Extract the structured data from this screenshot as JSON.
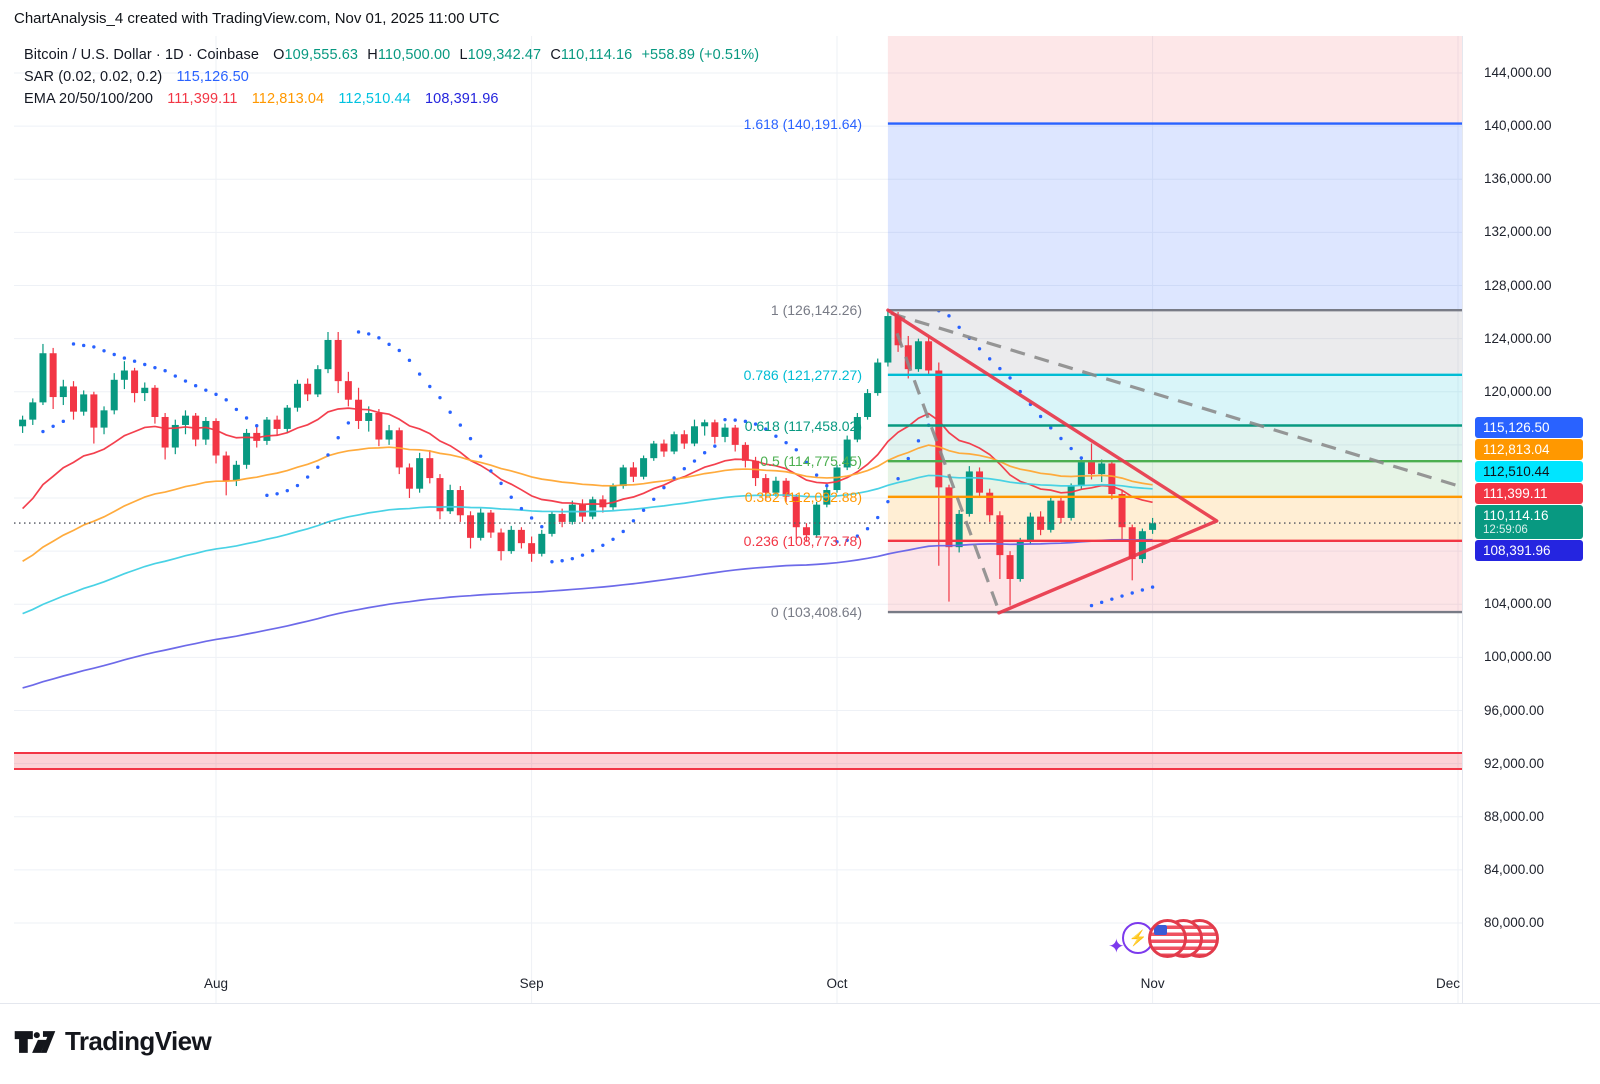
{
  "header": {
    "title": "ChartAnalysis_4 created with TradingView.com, Nov 01, 2025 11:00 UTC"
  },
  "legend": {
    "symbol_row": {
      "symbol": "Bitcoin / U.S. Dollar · 1D · Coinbase",
      "o_label": "O",
      "o": "109,555.63",
      "h_label": "H",
      "h": "110,500.00",
      "l_label": "L",
      "l": "109,342.47",
      "c_label": "C",
      "c": "110,114.16",
      "change": "+558.89 (+0.51%)",
      "value_color": "#089981"
    },
    "sar_row": {
      "label": "SAR (0.02, 0.02, 0.2)",
      "value": "115,126.50",
      "value_color": "#2962ff"
    },
    "ema_row": {
      "label": "EMA 20/50/100/200",
      "ema20": "111,399.11",
      "ema20_color": "#f23645",
      "ema50": "112,813.04",
      "ema50_color": "#ff9800",
      "ema100": "112,510.44",
      "ema100_color": "#00c2e0",
      "ema200": "108,391.96",
      "ema200_color": "#2424dd"
    }
  },
  "price_scale": [
    {
      "text": "144,000.00",
      "price": 144000
    },
    {
      "text": "140,000.00",
      "price": 140000
    },
    {
      "text": "136,000.00",
      "price": 136000
    },
    {
      "text": "132,000.00",
      "price": 132000
    },
    {
      "text": "128,000.00",
      "price": 128000
    },
    {
      "text": "124,000.00",
      "price": 124000
    },
    {
      "text": "120,000.00",
      "price": 120000
    },
    {
      "text": "116,000.00",
      "price": 116000
    },
    {
      "text": "112,000.00",
      "price": 112000
    },
    {
      "text": "108,000.00",
      "price": 108000
    },
    {
      "text": "104,000.00",
      "price": 104000
    },
    {
      "text": "100,000.00",
      "price": 100000
    },
    {
      "text": "96,000.00",
      "price": 96000
    },
    {
      "text": "92,000.00",
      "price": 92000
    },
    {
      "text": "88,000.00",
      "price": 88000
    },
    {
      "text": "84,000.00",
      "price": 84000
    },
    {
      "text": "80,000.00",
      "price": 80000
    }
  ],
  "price_badges": [
    {
      "name": "sar-value",
      "text": "115,126.50",
      "bg": "#2962ff",
      "fg": "#ffffff"
    },
    {
      "name": "ema50-value",
      "text": "112,813.04",
      "bg": "#ff9800",
      "fg": "#ffffff"
    },
    {
      "name": "ema100-value",
      "text": "112,510.44",
      "bg": "#00e5ff",
      "fg": "#10131a"
    },
    {
      "name": "ema20-value",
      "text": "111,399.11",
      "bg": "#f23645",
      "fg": "#ffffff"
    },
    {
      "name": "last-price",
      "text": "110,114.16",
      "sub": "12:59:06",
      "bg": "#089981",
      "fg": "#ffffff"
    },
    {
      "name": "ema200-value",
      "text": "108,391.96",
      "bg": "#2525e0",
      "fg": "#ffffff"
    }
  ],
  "time_scale": [
    {
      "label": "Aug",
      "index": 19
    },
    {
      "label": "Sep",
      "index": 50
    },
    {
      "label": "Oct",
      "index": 80
    },
    {
      "label": "Nov",
      "index": 111
    },
    {
      "label": "Dec",
      "index": 141
    }
  ],
  "footer": {
    "brand": "TradingView"
  },
  "chart_data": {
    "type": "candlestick",
    "symbol": "Bitcoin / U.S. Dollar",
    "interval": "1D",
    "exchange": "Coinbase",
    "last": {
      "open": 109555.63,
      "high": 110500.0,
      "low": 109342.47,
      "close": 110114.16,
      "change": 558.89,
      "change_pct": 0.51,
      "countdown": "12:59:06"
    },
    "ylim": [
      77900,
      146800
    ],
    "xlabels": [
      "Aug",
      "Sep",
      "Oct",
      "Nov",
      "Dec"
    ],
    "grid": true,
    "units": "USD thousands",
    "candles": [
      [
        117.4,
        118.2,
        116.9,
        117.9
      ],
      [
        117.9,
        119.5,
        117.5,
        119.2
      ],
      [
        119.2,
        123.6,
        119.0,
        122.9
      ],
      [
        122.9,
        123.3,
        118.7,
        119.6
      ],
      [
        119.6,
        120.9,
        119.0,
        120.4
      ],
      [
        120.4,
        120.8,
        117.9,
        118.5
      ],
      [
        118.5,
        120.1,
        118.2,
        119.8
      ],
      [
        119.8,
        120.0,
        116.1,
        117.3
      ],
      [
        117.3,
        118.9,
        116.8,
        118.6
      ],
      [
        118.6,
        121.4,
        118.3,
        120.9
      ],
      [
        120.9,
        122.3,
        120.2,
        121.6
      ],
      [
        121.6,
        121.8,
        119.2,
        119.9
      ],
      [
        119.9,
        120.7,
        119.3,
        120.3
      ],
      [
        120.3,
        120.5,
        117.6,
        118.1
      ],
      [
        118.1,
        118.4,
        114.9,
        115.8
      ],
      [
        115.8,
        117.9,
        115.3,
        117.5
      ],
      [
        117.5,
        118.6,
        116.8,
        118.2
      ],
      [
        118.2,
        118.4,
        115.9,
        116.4
      ],
      [
        116.4,
        118.1,
        116.0,
        117.8
      ],
      [
        117.8,
        118.0,
        114.6,
        115.2
      ],
      [
        115.2,
        115.5,
        112.2,
        113.3
      ],
      [
        113.3,
        114.8,
        112.9,
        114.5
      ],
      [
        114.5,
        117.2,
        114.2,
        116.9
      ],
      [
        116.9,
        117.4,
        115.8,
        116.3
      ],
      [
        116.3,
        118.1,
        116.0,
        117.9
      ],
      [
        117.9,
        118.2,
        116.7,
        117.2
      ],
      [
        117.2,
        119.0,
        116.9,
        118.8
      ],
      [
        118.8,
        120.9,
        118.5,
        120.6
      ],
      [
        120.6,
        121.0,
        119.3,
        119.8
      ],
      [
        119.8,
        122.0,
        119.6,
        121.7
      ],
      [
        121.7,
        124.5,
        121.4,
        123.9
      ],
      [
        123.9,
        124.5,
        119.9,
        120.8
      ],
      [
        120.8,
        121.5,
        118.9,
        119.4
      ],
      [
        119.4,
        120.3,
        117.2,
        117.8
      ],
      [
        117.8,
        118.9,
        117.0,
        118.4
      ],
      [
        118.4,
        118.7,
        115.9,
        116.4
      ],
      [
        116.4,
        117.5,
        116.0,
        117.1
      ],
      [
        117.1,
        117.3,
        113.8,
        114.3
      ],
      [
        114.3,
        114.6,
        112.0,
        112.7
      ],
      [
        112.7,
        115.4,
        112.4,
        115.0
      ],
      [
        115.0,
        115.6,
        113.1,
        113.5
      ],
      [
        113.5,
        113.8,
        110.4,
        111.0
      ],
      [
        111.0,
        113.0,
        110.8,
        112.6
      ],
      [
        112.6,
        112.9,
        110.2,
        110.7
      ],
      [
        110.7,
        111.0,
        108.2,
        109.0
      ],
      [
        109.0,
        111.2,
        108.8,
        110.9
      ],
      [
        110.9,
        111.1,
        109.0,
        109.4
      ],
      [
        109.4,
        109.7,
        107.3,
        108.0
      ],
      [
        108.0,
        109.9,
        107.8,
        109.6
      ],
      [
        109.6,
        109.8,
        108.2,
        108.6
      ],
      [
        108.6,
        109.1,
        107.2,
        107.8
      ],
      [
        107.8,
        109.6,
        107.6,
        109.3
      ],
      [
        109.3,
        111.0,
        109.1,
        110.8
      ],
      [
        110.8,
        111.2,
        109.8,
        110.2
      ],
      [
        110.2,
        111.8,
        110.0,
        111.5
      ],
      [
        111.5,
        111.9,
        110.2,
        110.6
      ],
      [
        110.6,
        112.1,
        110.4,
        111.9
      ],
      [
        111.9,
        112.2,
        110.9,
        111.3
      ],
      [
        111.3,
        113.1,
        111.1,
        112.9
      ],
      [
        112.9,
        114.5,
        112.7,
        114.3
      ],
      [
        114.3,
        114.7,
        113.2,
        113.6
      ],
      [
        113.6,
        115.2,
        113.4,
        115.0
      ],
      [
        115.0,
        116.3,
        114.8,
        116.1
      ],
      [
        116.1,
        116.4,
        115.1,
        115.5
      ],
      [
        115.5,
        117.0,
        115.3,
        116.8
      ],
      [
        116.8,
        117.1,
        115.7,
        116.1
      ],
      [
        116.1,
        117.9,
        115.9,
        117.4
      ],
      [
        117.4,
        117.9,
        116.7,
        117.7
      ],
      [
        117.7,
        117.9,
        116.1,
        116.6
      ],
      [
        116.6,
        117.6,
        116.2,
        117.3
      ],
      [
        117.3,
        117.5,
        115.5,
        116.0
      ],
      [
        116.0,
        116.2,
        114.3,
        114.8
      ],
      [
        114.8,
        115.1,
        112.9,
        113.5
      ],
      [
        113.5,
        113.8,
        111.8,
        112.4
      ],
      [
        112.4,
        113.6,
        112.1,
        113.3
      ],
      [
        113.3,
        113.5,
        111.7,
        112.1
      ],
      [
        112.1,
        112.3,
        108.9,
        109.8
      ],
      [
        109.8,
        110.1,
        108.7,
        109.2
      ],
      [
        109.2,
        111.7,
        109.0,
        111.5
      ],
      [
        111.5,
        112.8,
        111.3,
        112.6
      ],
      [
        112.6,
        114.5,
        112.4,
        114.3
      ],
      [
        114.3,
        116.7,
        114.1,
        116.4
      ],
      [
        116.4,
        118.4,
        116.2,
        118.1
      ],
      [
        118.1,
        120.2,
        117.9,
        119.9
      ],
      [
        119.9,
        122.5,
        119.7,
        122.2
      ],
      [
        122.2,
        126.1,
        121.9,
        125.7
      ],
      [
        125.7,
        126.0,
        123.0,
        123.5
      ],
      [
        123.5,
        124.2,
        121.0,
        121.7
      ],
      [
        121.7,
        124.0,
        121.5,
        123.8
      ],
      [
        123.8,
        124.1,
        121.2,
        121.6
      ],
      [
        121.6,
        122.2,
        106.9,
        112.8
      ],
      [
        112.8,
        113.0,
        104.2,
        108.3
      ],
      [
        108.3,
        111.1,
        107.9,
        110.8
      ],
      [
        110.8,
        114.4,
        110.6,
        114.0
      ],
      [
        114.0,
        114.3,
        112.0,
        112.4
      ],
      [
        112.4,
        112.7,
        110.2,
        110.7
      ],
      [
        110.7,
        111.0,
        105.9,
        107.7
      ],
      [
        107.7,
        108.0,
        103.9,
        105.9
      ],
      [
        105.9,
        109.0,
        105.7,
        108.7
      ],
      [
        108.7,
        110.9,
        108.5,
        110.6
      ],
      [
        110.6,
        111.0,
        109.2,
        109.6
      ],
      [
        109.6,
        112.0,
        109.4,
        111.8
      ],
      [
        111.8,
        112.1,
        110.1,
        110.5
      ],
      [
        110.5,
        113.1,
        110.3,
        112.9
      ],
      [
        112.9,
        115.0,
        112.7,
        114.7
      ],
      [
        114.7,
        116.1,
        113.4,
        113.8
      ],
      [
        113.8,
        114.9,
        113.2,
        114.6
      ],
      [
        114.6,
        114.8,
        111.9,
        112.3
      ],
      [
        112.3,
        112.6,
        108.9,
        109.8
      ],
      [
        109.8,
        110.0,
        105.8,
        107.4
      ],
      [
        107.4,
        109.7,
        107.1,
        109.5
      ],
      [
        109.6,
        110.5,
        109.3,
        110.1
      ]
    ],
    "up_color": "#089981",
    "down_color": "#f23645",
    "indicators": {
      "sar": {
        "params": [
          0.02,
          0.02,
          0.2
        ],
        "current": 115126.5,
        "color": "#2962ff"
      },
      "emas": [
        {
          "period": 20,
          "seed": 110.5,
          "current": 111399.11,
          "color": "#f23645"
        },
        {
          "period": 50,
          "seed": 106.8,
          "current": 112813.04,
          "color": "#ffa733"
        },
        {
          "period": 100,
          "seed": 103.0,
          "current": 112510.44,
          "color": "#3fd0e4"
        },
        {
          "period": 200,
          "seed": 97.5,
          "current": 108391.96,
          "color": "#6562e8"
        }
      ]
    },
    "fib": {
      "start_index": 85,
      "top_band": "rgba(242,54,69,0.12)",
      "levels": [
        {
          "level": "1.618",
          "label": "1.618 (140,191.64)",
          "price": 140191.64,
          "color": "#2962ff",
          "band_above": "rgba(242,54,69,0.12)"
        },
        {
          "level": "1",
          "label": "1 (126,142.26)",
          "price": 126142.26,
          "color": "#787b86",
          "band_above": "rgba(41,98,255,0.16)"
        },
        {
          "level": "0.786",
          "label": "0.786 (121,277.27)",
          "price": 121277.27,
          "color": "#00bcd4",
          "band_above": "rgba(120,123,134,0.15)"
        },
        {
          "level": "0.618",
          "label": "0.618 (117,458.02)",
          "price": 117458.02,
          "color": "#089981",
          "band_above": "rgba(0,188,212,0.15)"
        },
        {
          "level": "0.5",
          "label": "0.5 (114,775.45)",
          "price": 114775.45,
          "color": "#4caf50",
          "band_above": "rgba(8,153,129,0.12)"
        },
        {
          "level": "0.382",
          "label": "0.382 (112,092.88)",
          "price": 112092.88,
          "color": "#ff9800",
          "band_above": "rgba(76,175,80,0.14)"
        },
        {
          "level": "0.236",
          "label": "0.236 (108,773.78)",
          "price": 108773.78,
          "color": "#f23645",
          "band_above": "rgba(255,152,0,0.17)"
        },
        {
          "level": "0",
          "label": "0 (103,408.64)",
          "price": 103408.64,
          "color": "#787b86",
          "band_above": "rgba(242,54,69,0.13)"
        }
      ]
    },
    "drawings": {
      "price_line": {
        "price": 110114.16,
        "style": "dotted",
        "color": "#50535e"
      },
      "support_zone": {
        "top": 92800,
        "bottom": 91600,
        "line_color": "#f23645",
        "fill": "rgba(242,54,69,0.22)"
      },
      "triangle": {
        "color": "#e8374a",
        "apex": {
          "index": 117.3,
          "price": 110270
        },
        "upper_start": {
          "index": 85,
          "price": 126142
        },
        "lower_start": {
          "index": 95.9,
          "price": 103350
        }
      },
      "dashed_lines": [
        {
          "from": {
            "index": 85.3,
            "price": 125900
          },
          "to": {
            "index": 141.3,
            "price": 112850
          },
          "color": "#8a8a8a"
        },
        {
          "from": {
            "index": 85.9,
            "price": 124400
          },
          "to": {
            "index": 95.9,
            "price": 103500
          },
          "color": "#8a8a8a"
        }
      ]
    }
  }
}
